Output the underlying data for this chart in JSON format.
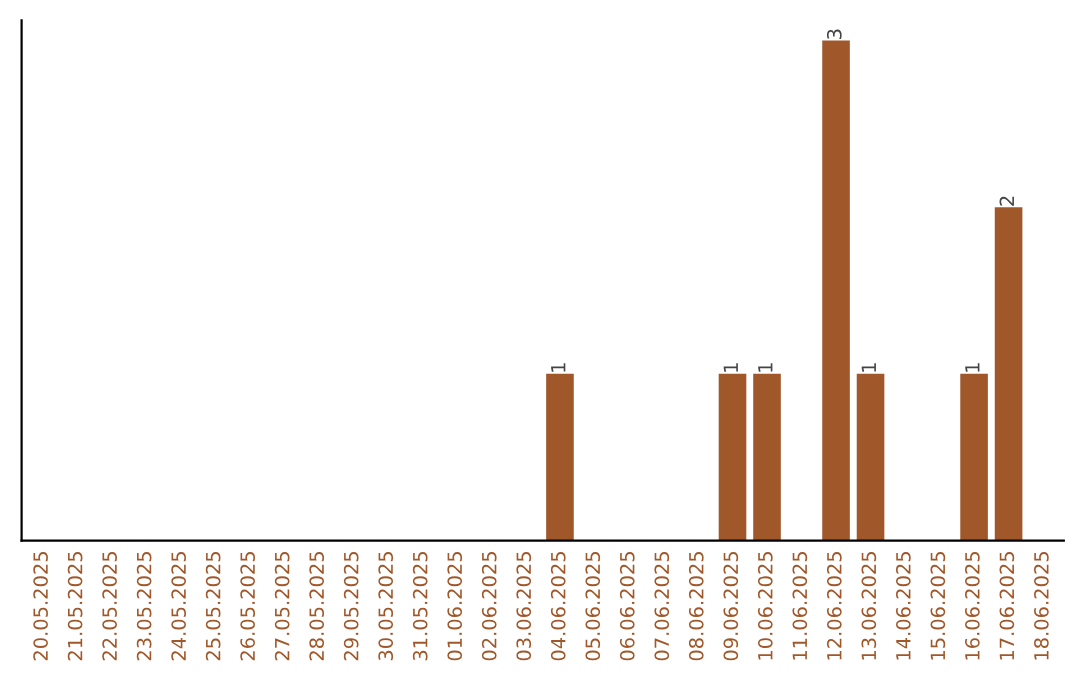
{
  "chart_data": {
    "type": "bar",
    "categories": [
      "20.05.2025",
      "21.05.2025",
      "22.05.2025",
      "23.05.2025",
      "24.05.2025",
      "25.05.2025",
      "26.05.2025",
      "27.05.2025",
      "28.05.2025",
      "29.05.2025",
      "30.05.2025",
      "31.05.2025",
      "01.06.2025",
      "02.06.2025",
      "03.06.2025",
      "04.06.2025",
      "05.06.2025",
      "06.06.2025",
      "07.06.2025",
      "08.06.2025",
      "09.06.2025",
      "10.06.2025",
      "11.06.2025",
      "12.06.2025",
      "13.06.2025",
      "14.06.2025",
      "15.06.2025",
      "16.06.2025",
      "17.06.2025",
      "18.06.2025"
    ],
    "values": [
      null,
      null,
      null,
      null,
      null,
      null,
      null,
      null,
      null,
      null,
      null,
      null,
      null,
      null,
      null,
      1,
      null,
      null,
      null,
      null,
      1,
      1,
      null,
      3,
      1,
      null,
      null,
      1,
      2,
      null
    ],
    "data_labels": true,
    "color": "#a0582a",
    "tick_labels": "x",
    "grid": false,
    "legend": false
  }
}
